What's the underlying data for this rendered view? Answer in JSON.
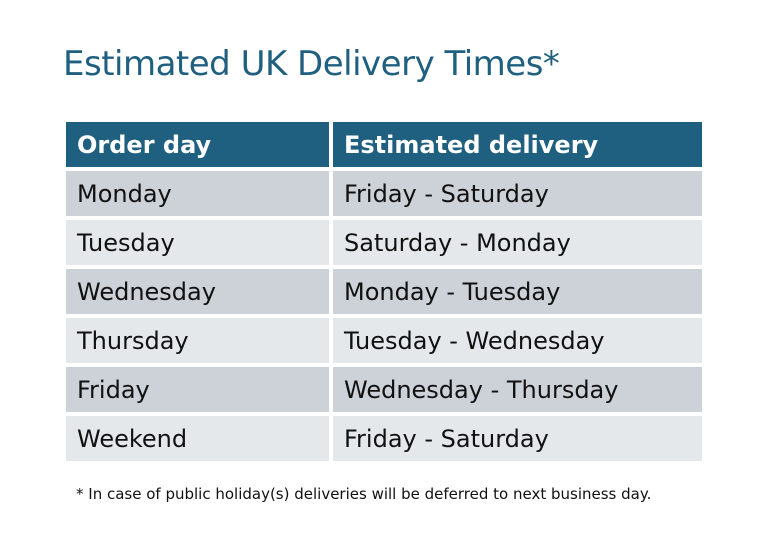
{
  "title": "Estimated UK Delivery Times*",
  "table": {
    "headers": [
      "Order day",
      "Estimated delivery"
    ],
    "rows": [
      [
        "Monday",
        "Friday - Saturday"
      ],
      [
        "Tuesday",
        "Saturday - Monday"
      ],
      [
        "Wednesday",
        "Monday - Tuesday"
      ],
      [
        "Thursday",
        "Tuesday - Wednesday"
      ],
      [
        "Friday",
        "Wednesday - Thursday"
      ],
      [
        "Weekend",
        "Friday - Saturday"
      ]
    ]
  },
  "footnote": "* In case of public holiday(s) deliveries will be deferred to next business day.",
  "colors": {
    "header": "#1f5f80",
    "row_odd": "#cdd1d8",
    "row_even": "#e5e8eb",
    "title": "#1f5f80"
  }
}
